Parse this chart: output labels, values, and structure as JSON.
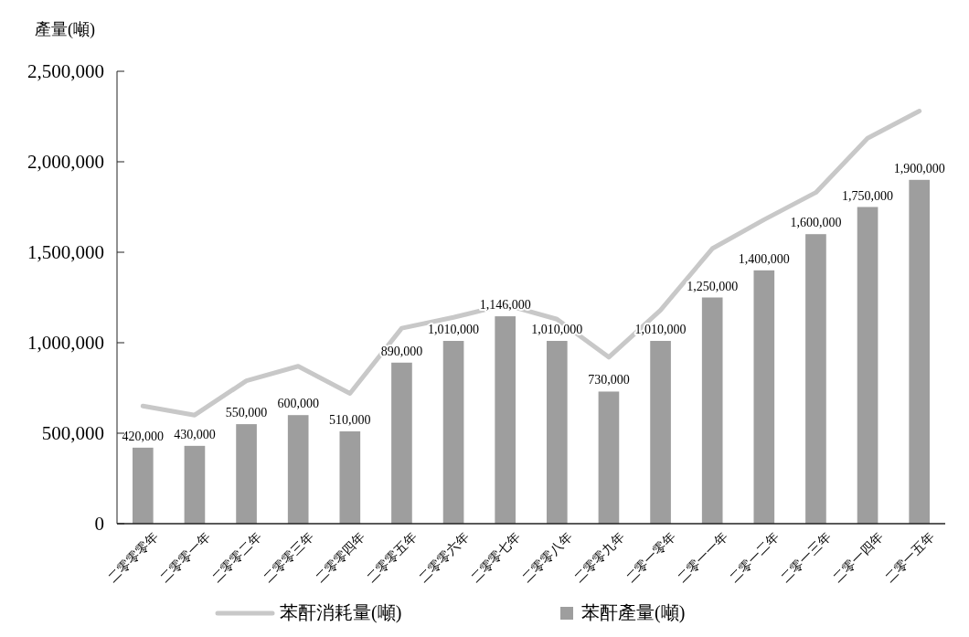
{
  "chart_data": {
    "type": "bar",
    "ylabel": "產量(噸)",
    "categories": [
      "二零零零年",
      "二零零一年",
      "二零零二年",
      "二零零三年",
      "二零零四年",
      "二零零五年",
      "二零零六年",
      "二零零七年",
      "二零零八年",
      "二零零九年",
      "二零一零年",
      "二零一一年",
      "二零一二年",
      "二零一三年",
      "二零一四年",
      "二零一五年"
    ],
    "series": [
      {
        "name": "苯酐消耗量(噸)",
        "type": "line",
        "color": "#c8c8c8",
        "values": [
          650000,
          600000,
          790000,
          870000,
          720000,
          1080000,
          1140000,
          1210000,
          1130000,
          920000,
          1180000,
          1520000,
          1680000,
          1830000,
          2130000,
          2280000
        ]
      },
      {
        "name": "苯酐產量(噸)",
        "color": "#9e9e9e",
        "values": [
          420000,
          430000,
          550000,
          600000,
          510000,
          890000,
          1010000,
          1146000,
          1010000,
          730000,
          1010000,
          1250000,
          1400000,
          1600000,
          1750000,
          1900000
        ],
        "value_labels": [
          "420,000",
          "430,000",
          "550,000",
          "600,000",
          "510,000",
          "890,000",
          "1,010,000",
          "1,146,000",
          "1,010,000",
          "730,000",
          "1,010,000",
          "1,250,000",
          "1,400,000",
          "1,600,000",
          "1,750,000",
          "1,900,000"
        ]
      }
    ],
    "ylim": [
      0,
      2500000
    ],
    "yticks": [
      0,
      {
        "value": 500000,
        "label": "500,000"
      },
      {
        "value": 1000000,
        "label": "1,000,000"
      },
      {
        "value": 1500000,
        "label": "1,500,000"
      },
      {
        "value": 2000000,
        "label": "2,000,000"
      },
      {
        "value": 2500000,
        "label": "2,500,000"
      }
    ],
    "legend": "bottom",
    "grid": false
  }
}
